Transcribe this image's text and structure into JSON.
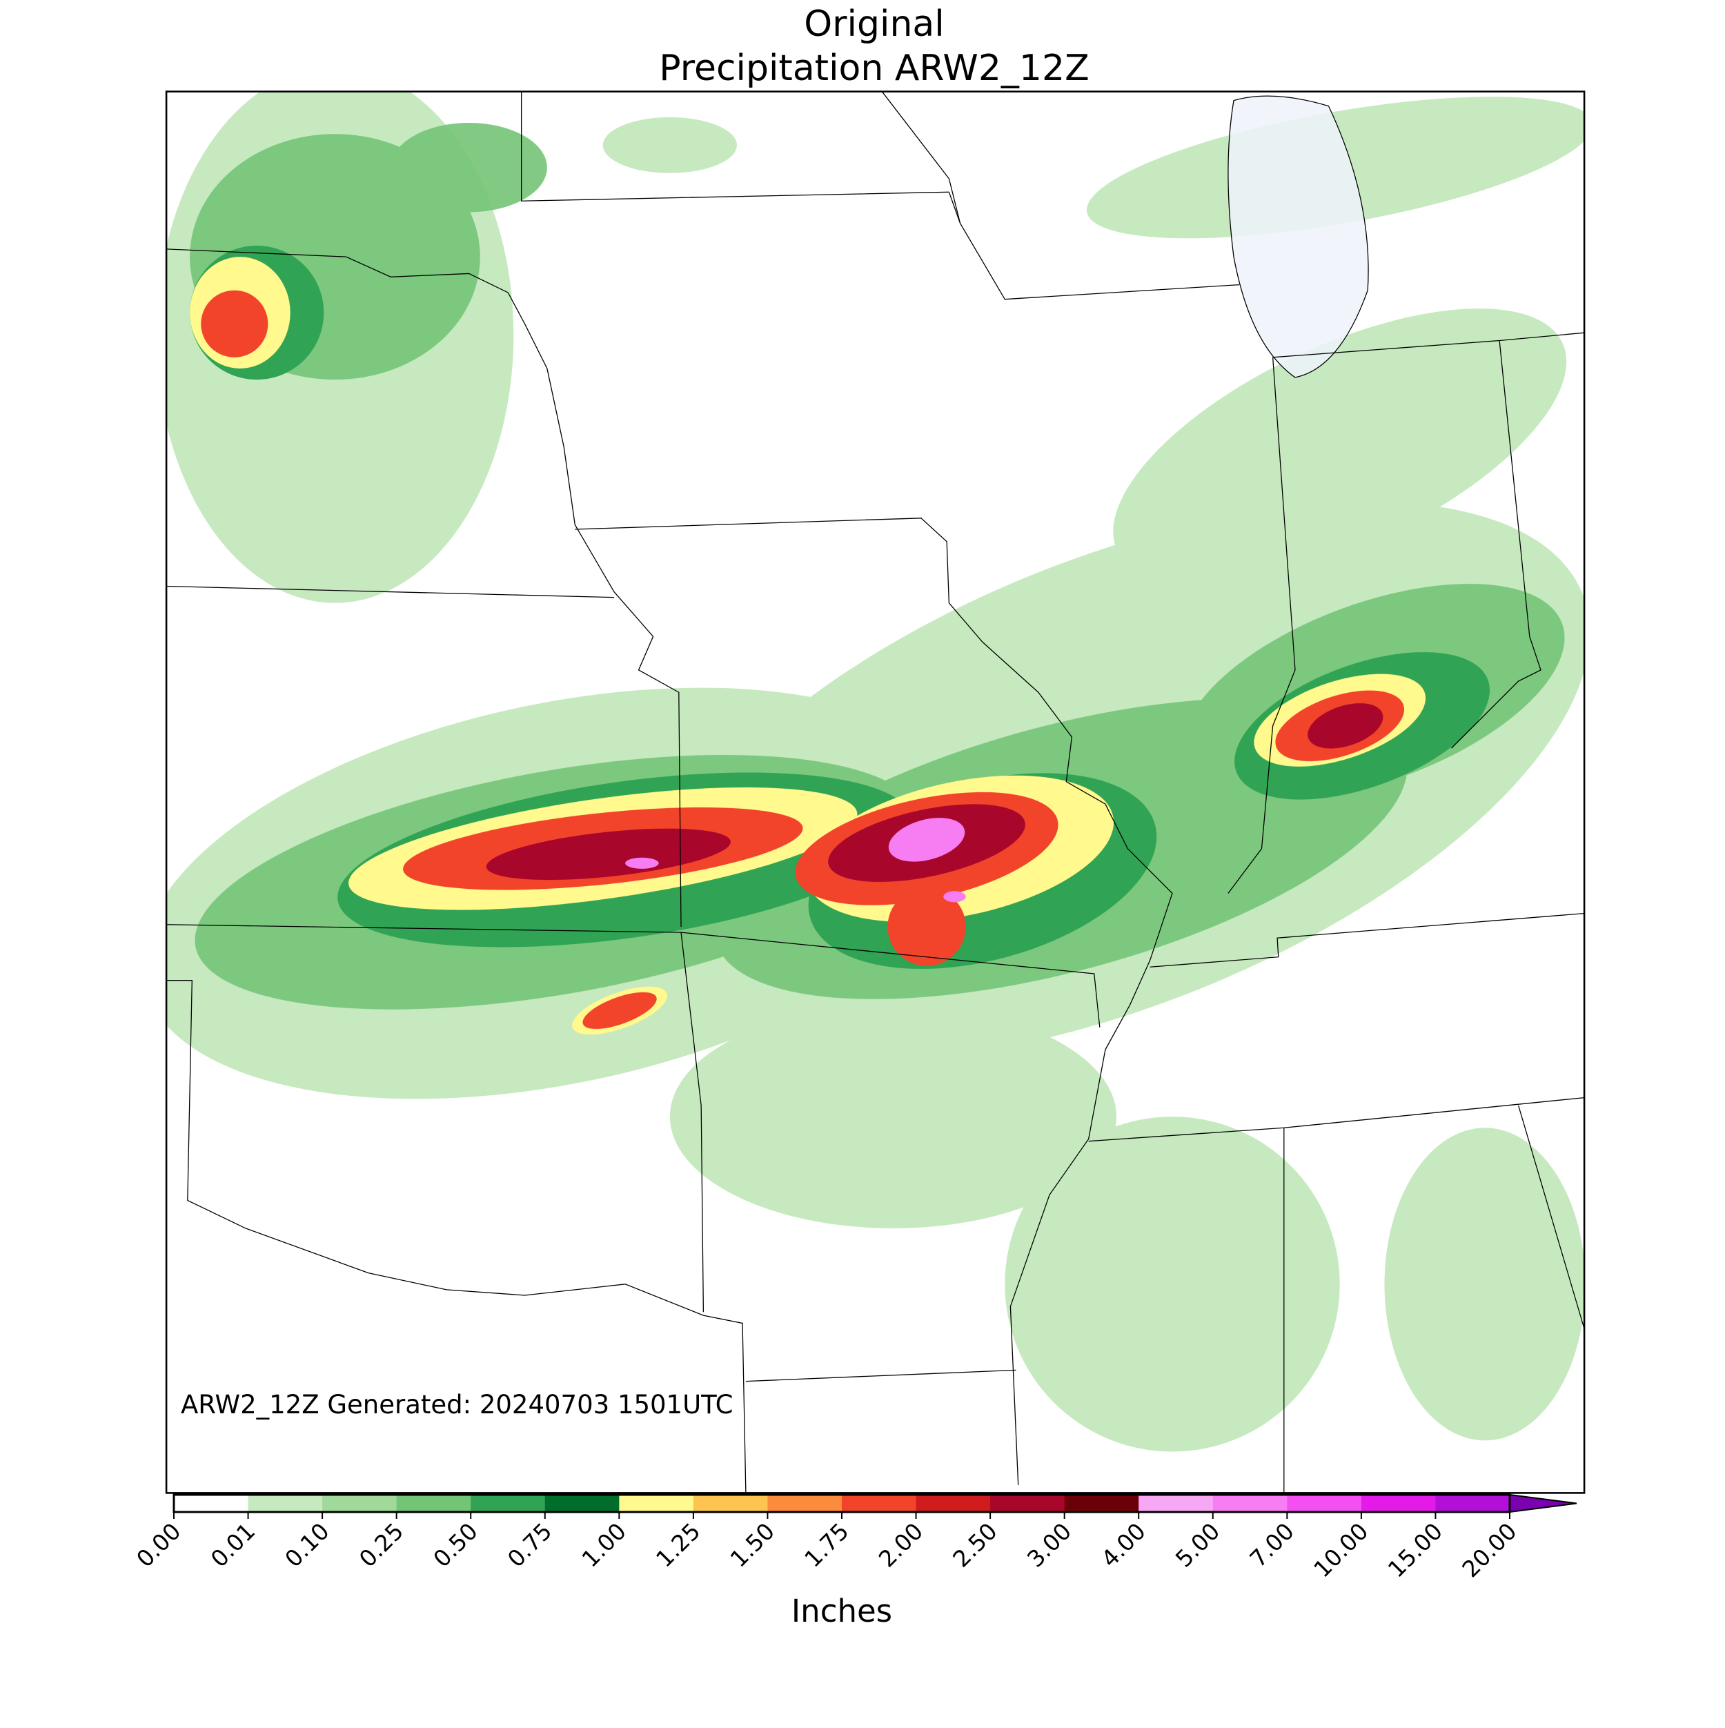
{
  "title": {
    "line1": "Original",
    "line2": "Precipitation ARW2_12Z"
  },
  "annotation": "ARW2_12Z Generated: 20240703 1501UTC",
  "colorbar": {
    "label": "Inches",
    "ticks": [
      "0.00",
      "0.01",
      "0.10",
      "0.25",
      "0.50",
      "0.75",
      "1.00",
      "1.25",
      "1.50",
      "1.75",
      "2.00",
      "2.50",
      "3.00",
      "4.00",
      "5.00",
      "7.00",
      "10.00",
      "15.00",
      "20.00"
    ],
    "colors": [
      "#ffffff",
      "#c7e9c0",
      "#a1d99b",
      "#74c476",
      "#31a354",
      "#006d2c",
      "#fff98e",
      "#fdc550",
      "#fd8b3c",
      "#f2442a",
      "#d01c1c",
      "#a8062b",
      "#6b0008",
      "#f7a8f4",
      "#f67ef2",
      "#f44ff2",
      "#e41ae8",
      "#b20fd8"
    ],
    "extend_color": "#7a00b0"
  }
}
